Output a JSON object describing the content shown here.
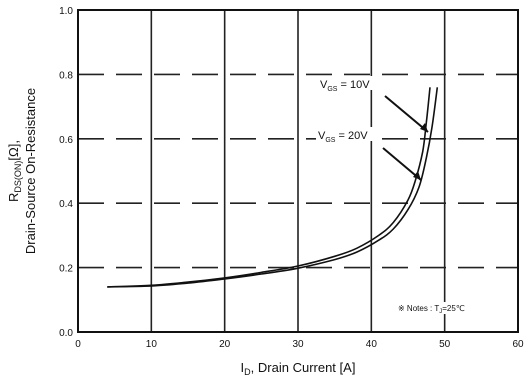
{
  "chart_data": {
    "type": "line",
    "title": "",
    "xlabel_main": "I",
    "xlabel_sub": "D",
    "xlabel_rest": ", Drain Current [A]",
    "ylabel_line1_main": "R",
    "ylabel_line1_sub": "DS(ON)",
    "ylabel_line1_rest": "[Ω],",
    "ylabel_line2": "Drain-Source On-Resistance",
    "xlim": [
      0,
      60
    ],
    "ylim": [
      0.0,
      1.0
    ],
    "x_ticks": [
      "0",
      "10",
      "20",
      "30",
      "40",
      "50",
      "60"
    ],
    "y_ticks": [
      "0.0",
      "0.2",
      "0.4",
      "0.6",
      "0.8",
      "1.0"
    ],
    "grid": true,
    "series": [
      {
        "name": "V_GS = 10V",
        "x": [
          4,
          10,
          15,
          20,
          25,
          30,
          35,
          38,
          41,
          43,
          45,
          46,
          47,
          47.5,
          48
        ],
        "y": [
          0.14,
          0.145,
          0.155,
          0.168,
          0.185,
          0.205,
          0.235,
          0.26,
          0.3,
          0.34,
          0.41,
          0.47,
          0.56,
          0.65,
          0.76
        ]
      },
      {
        "name": "V_GS = 20V",
        "x": [
          4,
          10,
          15,
          20,
          25,
          30,
          35,
          38,
          41,
          43,
          45,
          46.5,
          47.5,
          48.3,
          49
        ],
        "y": [
          0.14,
          0.143,
          0.152,
          0.165,
          0.18,
          0.198,
          0.225,
          0.248,
          0.285,
          0.32,
          0.38,
          0.45,
          0.54,
          0.64,
          0.76
        ]
      }
    ],
    "annotations": {
      "vgs10_main": "V",
      "vgs10_sub": "GS",
      "vgs10_rest": " = 10V",
      "vgs20_main": "V",
      "vgs20_sub": "GS",
      "vgs20_rest": " = 20V",
      "note": "※ Notes : T",
      "note_sub": "J",
      "note_rest": "=25℃"
    }
  }
}
